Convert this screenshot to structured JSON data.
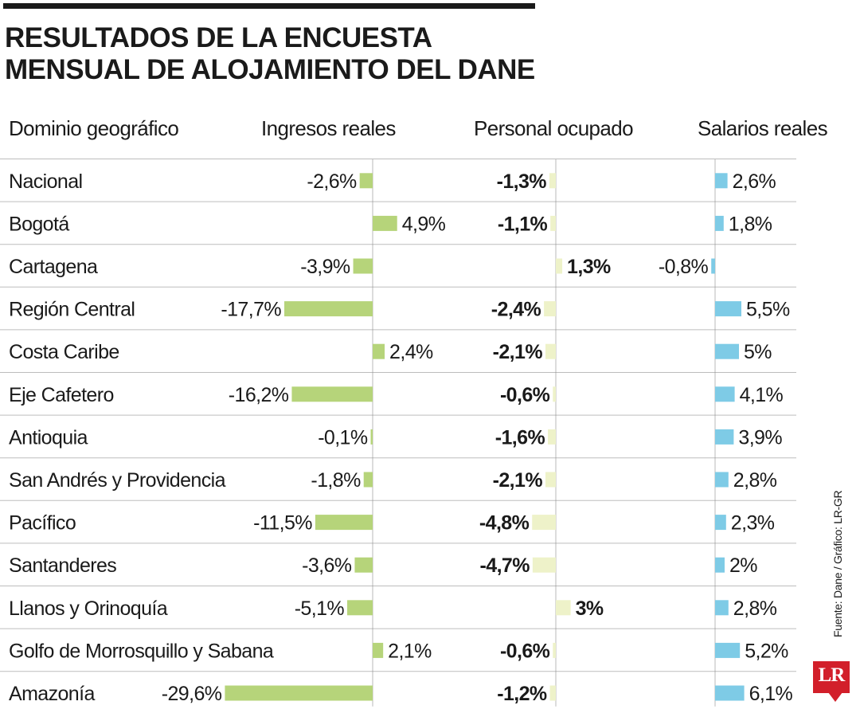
{
  "title_lines": [
    "RESULTADOS DE LA ENCUESTA",
    "MENSUAL DE ALOJAMIENTO DEL DANE"
  ],
  "headers": {
    "region": "Dominio geográfico",
    "ingresos": "Ingresos reales",
    "personal": "Personal ocupado",
    "salarios": "Salarios reales"
  },
  "source": "Fuente: Dane / Gráfico: LR-GR",
  "logo_text": "LR",
  "colors": {
    "ingresos": "#b6d47a",
    "personal": "#eef2c9",
    "salarios": "#7ecbe6",
    "divider": "#bdbdbd",
    "axis": "#8a8a8a",
    "text": "#1a1a1a",
    "brand": "#d21f2a"
  },
  "chart_data": {
    "type": "bar",
    "orientation": "horizontal",
    "categories": [
      "Nacional",
      "Bogotá",
      "Cartagena",
      "Región Central",
      "Costa Caribe",
      "Eje Cafetero",
      "Antioquia",
      "San Andrés y Providencia",
      "Pacífico",
      "Santanderes",
      "Llanos y Orinoquía",
      "Golfo de Morrosquillo y Sabana",
      "Amazonía"
    ],
    "series": [
      {
        "name": "Ingresos reales",
        "values": [
          -2.6,
          4.9,
          -3.9,
          -17.7,
          2.4,
          -16.2,
          -0.1,
          -1.8,
          -11.5,
          -3.6,
          -5.1,
          2.1,
          -29.6
        ],
        "labels": [
          "-2,6%",
          "4,9%",
          "-3,9%",
          "-17,7%",
          "2,4%",
          "-16,2%",
          "-0,1%",
          "-1,8%",
          "-11,5%",
          "-3,6%",
          "-5,1%",
          "2,1%",
          "-29,6%"
        ]
      },
      {
        "name": "Personal ocupado",
        "values": [
          -1.3,
          -1.1,
          1.3,
          -2.4,
          -2.1,
          -0.6,
          -1.6,
          -2.1,
          -4.8,
          -4.7,
          3.0,
          -0.6,
          -1.2
        ],
        "labels": [
          "-1,3%",
          "-1,1%",
          "1,3%",
          "-2,4%",
          "-2,1%",
          "-0,6%",
          "-1,6%",
          "-2,1%",
          "-4,8%",
          "-4,7%",
          "3%",
          "-0,6%",
          "-1,2%"
        ]
      },
      {
        "name": "Salarios reales",
        "values": [
          2.6,
          1.8,
          -0.8,
          5.5,
          5.0,
          4.1,
          3.9,
          2.8,
          2.3,
          2.0,
          2.8,
          5.2,
          6.1
        ],
        "labels": [
          "2,6%",
          "1,8%",
          "-0,8%",
          "5,5%",
          "5%",
          "4,1%",
          "3,9%",
          "2,8%",
          "2,3%",
          "2%",
          "2,8%",
          "5,2%",
          "6,1%"
        ]
      }
    ]
  }
}
